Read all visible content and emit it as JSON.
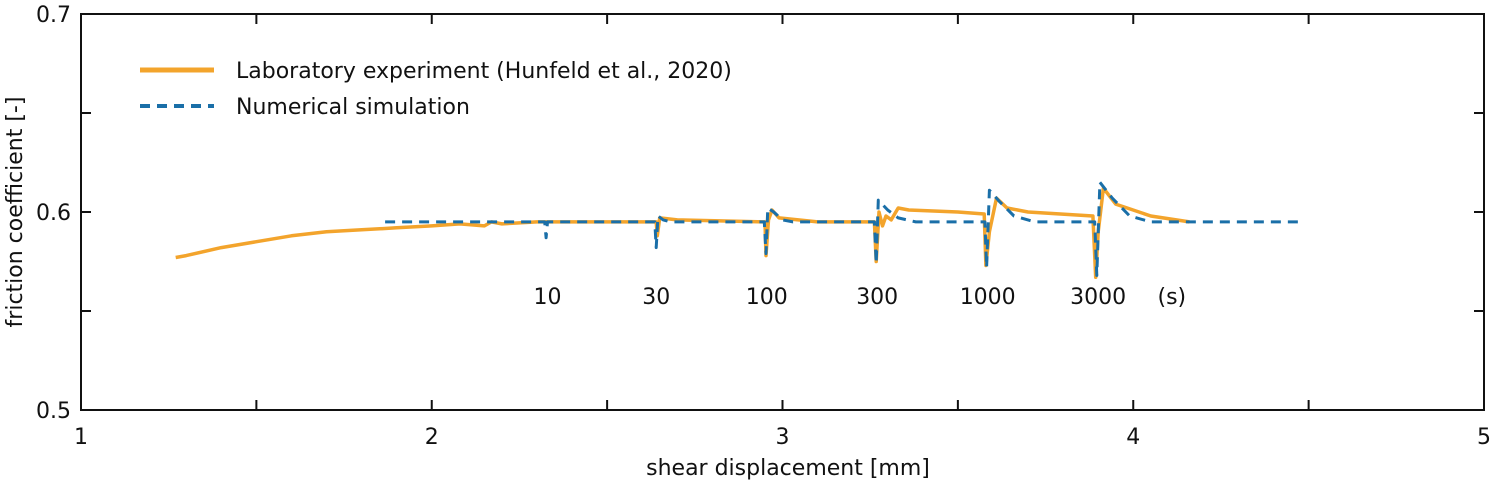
{
  "chart_data": {
    "type": "line",
    "xlabel": "shear displacement [mm]",
    "ylabel": "friction coefficient [-]",
    "xlim": [
      1,
      5
    ],
    "ylim": [
      0.5,
      0.7
    ],
    "x_ticks": [
      1,
      2,
      3,
      4,
      5
    ],
    "x_tick_labels": [
      "1",
      "2",
      "3",
      "4",
      "5"
    ],
    "x_minor_ticks": [
      1.5,
      2.5,
      3.5,
      4.5
    ],
    "y_ticks": [
      0.5,
      0.6,
      0.7
    ],
    "y_tick_labels": [
      "0.5",
      "0.6",
      "0.7"
    ],
    "y_minor_ticks": [
      0.55,
      0.65
    ],
    "grid": false,
    "legend_position": "top-left",
    "series": [
      {
        "name": "Laboratory experiment (Hunfeld et al., 2020)",
        "color": "#f3a42c",
        "style": "solid",
        "points": [
          [
            1.27,
            0.577
          ],
          [
            1.3,
            0.578
          ],
          [
            1.4,
            0.582
          ],
          [
            1.5,
            0.585
          ],
          [
            1.6,
            0.588
          ],
          [
            1.7,
            0.59
          ],
          [
            1.8,
            0.591
          ],
          [
            1.9,
            0.592
          ],
          [
            2.0,
            0.593
          ],
          [
            2.08,
            0.594
          ],
          [
            2.15,
            0.593
          ],
          [
            2.17,
            0.595
          ],
          [
            2.2,
            0.594
          ],
          [
            2.3,
            0.595
          ],
          [
            2.33,
            0.595
          ],
          [
            2.64,
            0.595
          ],
          [
            2.643,
            0.588
          ],
          [
            2.65,
            0.597
          ],
          [
            2.7,
            0.596
          ],
          [
            2.95,
            0.595
          ],
          [
            2.953,
            0.578
          ],
          [
            2.96,
            0.596
          ],
          [
            2.97,
            0.601
          ],
          [
            2.99,
            0.597
          ],
          [
            3.1,
            0.595
          ],
          [
            3.262,
            0.595
          ],
          [
            3.267,
            0.575
          ],
          [
            3.275,
            0.6
          ],
          [
            3.285,
            0.593
          ],
          [
            3.295,
            0.598
          ],
          [
            3.31,
            0.596
          ],
          [
            3.33,
            0.602
          ],
          [
            3.36,
            0.601
          ],
          [
            3.5,
            0.6
          ],
          [
            3.575,
            0.599
          ],
          [
            3.58,
            0.573
          ],
          [
            3.59,
            0.59
          ],
          [
            3.61,
            0.607
          ],
          [
            3.64,
            0.602
          ],
          [
            3.7,
            0.6
          ],
          [
            3.885,
            0.598
          ],
          [
            3.893,
            0.567
          ],
          [
            3.9,
            0.59
          ],
          [
            3.915,
            0.612
          ],
          [
            3.95,
            0.604
          ],
          [
            4.05,
            0.598
          ],
          [
            4.16,
            0.595
          ]
        ]
      },
      {
        "name": "Numerical simulation",
        "color": "#1a6fa8",
        "style": "dashed",
        "points": [
          [
            1.867,
            0.595
          ],
          [
            2.322,
            0.595
          ],
          [
            2.326,
            0.587
          ],
          [
            2.33,
            0.595
          ],
          [
            2.636,
            0.595
          ],
          [
            2.64,
            0.582
          ],
          [
            2.645,
            0.598
          ],
          [
            2.66,
            0.596
          ],
          [
            2.68,
            0.595
          ],
          [
            2.948,
            0.595
          ],
          [
            2.953,
            0.579
          ],
          [
            2.958,
            0.602
          ],
          [
            2.975,
            0.6
          ],
          [
            3.0,
            0.596
          ],
          [
            3.03,
            0.595
          ],
          [
            3.262,
            0.595
          ],
          [
            3.267,
            0.574
          ],
          [
            3.273,
            0.606
          ],
          [
            3.3,
            0.601
          ],
          [
            3.33,
            0.597
          ],
          [
            3.38,
            0.595
          ],
          [
            3.577,
            0.595
          ],
          [
            3.582,
            0.572
          ],
          [
            3.59,
            0.611
          ],
          [
            3.62,
            0.605
          ],
          [
            3.66,
            0.598
          ],
          [
            3.72,
            0.595
          ],
          [
            3.89,
            0.595
          ],
          [
            3.896,
            0.568
          ],
          [
            3.905,
            0.615
          ],
          [
            3.94,
            0.607
          ],
          [
            3.99,
            0.598
          ],
          [
            4.05,
            0.595
          ],
          [
            4.475,
            0.595
          ]
        ]
      }
    ],
    "annotations": [
      {
        "text": "10",
        "x": 2.33,
        "y": 0.5535
      },
      {
        "text": "30",
        "x": 2.64,
        "y": 0.5535
      },
      {
        "text": "100",
        "x": 2.955,
        "y": 0.5535
      },
      {
        "text": "300",
        "x": 3.27,
        "y": 0.5535
      },
      {
        "text": "1000",
        "x": 3.585,
        "y": 0.5535
      },
      {
        "text": "3000",
        "x": 3.9,
        "y": 0.5535
      },
      {
        "text": "(s)",
        "x": 4.11,
        "y": 0.5535
      }
    ]
  }
}
